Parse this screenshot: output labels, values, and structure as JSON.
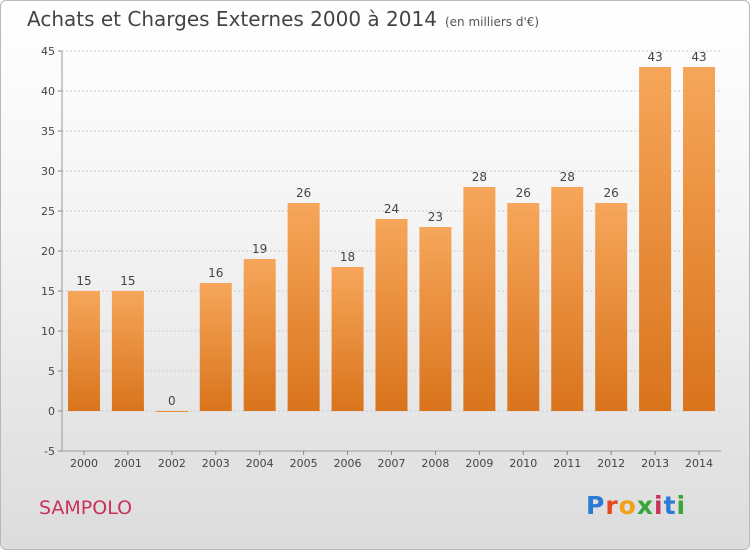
{
  "header": {
    "title": "Achats et Charges Externes 2000 à 2014",
    "unit": "(en milliers d'€)"
  },
  "footer": {
    "commune": "SAMPOLO",
    "brand": "Proxiti"
  },
  "colors": {
    "bar_top": "#f6a65a",
    "bar_bottom": "#d9741c",
    "grid": "#cccccc",
    "title": "#444444",
    "commune": "#c8325a"
  },
  "chart_data": {
    "type": "bar",
    "categories": [
      "2000",
      "2001",
      "2002",
      "2003",
      "2004",
      "2005",
      "2006",
      "2007",
      "2008",
      "2009",
      "2010",
      "2011",
      "2012",
      "2013",
      "2014"
    ],
    "values": [
      15,
      15,
      0,
      16,
      19,
      26,
      18,
      24,
      23,
      28,
      26,
      28,
      26,
      43,
      43
    ],
    "title": "Achats et Charges Externes 2000 à 2014",
    "ylim": [
      -5,
      45
    ],
    "yticks": [
      -5,
      0,
      5,
      10,
      15,
      20,
      25,
      30,
      35,
      40,
      45
    ],
    "grid": "horizontal dashed"
  }
}
